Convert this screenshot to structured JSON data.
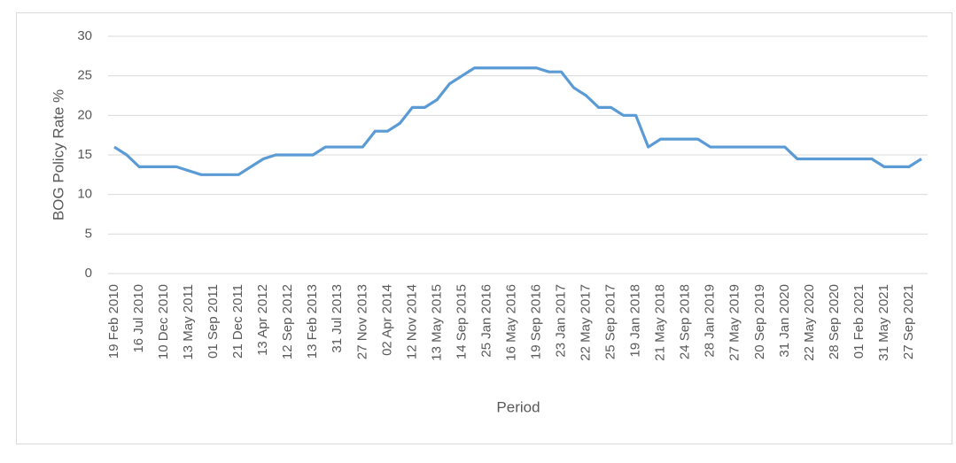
{
  "chart_data": {
    "type": "line",
    "y_label": "BOG Policy Rate %",
    "x_label": "Period",
    "categories": [
      "19 Feb 2010",
      null,
      "16 Jul 2010",
      null,
      "10 Dec 2010",
      null,
      "13 May 2011",
      null,
      "01 Sep 2011",
      null,
      "21 Dec 2011",
      null,
      "13 Apr 2012",
      null,
      "12 Sep 2012",
      null,
      "13 Feb 2013",
      null,
      "31 Jul 2013",
      null,
      "27 Nov 2013",
      null,
      "02 Apr 2014",
      null,
      "12 Nov 2014",
      null,
      "13 May 2015",
      null,
      "14 Sep 2015",
      null,
      "25 Jan 2016",
      null,
      "16 May 2016",
      null,
      "19 Sep 2016",
      null,
      "23 Jan 2017",
      null,
      "22 May 2017",
      null,
      "25 Sep 2017",
      null,
      "19 Jan 2018",
      null,
      "21 May 2018",
      null,
      "24 Sep 2018",
      null,
      "28 Jan 2019",
      null,
      "27 May 2019",
      null,
      "20 Sep 2019",
      null,
      "31 Jan 2020",
      null,
      "22 May 2020",
      null,
      "28 Sep 2020",
      null,
      "01 Feb 2021",
      null,
      "31 May 2021",
      null,
      "27 Sep 2021",
      null
    ],
    "series": [
      {
        "name": "BOG Policy Rate",
        "color": "#5b9bd5",
        "values": [
          16,
          15,
          13.5,
          13.5,
          13.5,
          13.5,
          13,
          12.5,
          12.5,
          12.5,
          12.5,
          13.5,
          14.5,
          15,
          15,
          15,
          15,
          16,
          16,
          16,
          16,
          18,
          18,
          19,
          21,
          21,
          22,
          24,
          25,
          26,
          26,
          26,
          26,
          26,
          26,
          25.5,
          25.5,
          23.5,
          22.5,
          21,
          21,
          20,
          20,
          16,
          17,
          17,
          17,
          17,
          16,
          16,
          16,
          16,
          16,
          16,
          16,
          14.5,
          14.5,
          14.5,
          14.5,
          14.5,
          14.5,
          14.5,
          13.5,
          13.5,
          13.5,
          14.5
        ]
      }
    ],
    "ylim": [
      0,
      30
    ],
    "yticks": [
      0,
      5,
      10,
      15,
      20,
      25,
      30
    ],
    "grid": true
  }
}
